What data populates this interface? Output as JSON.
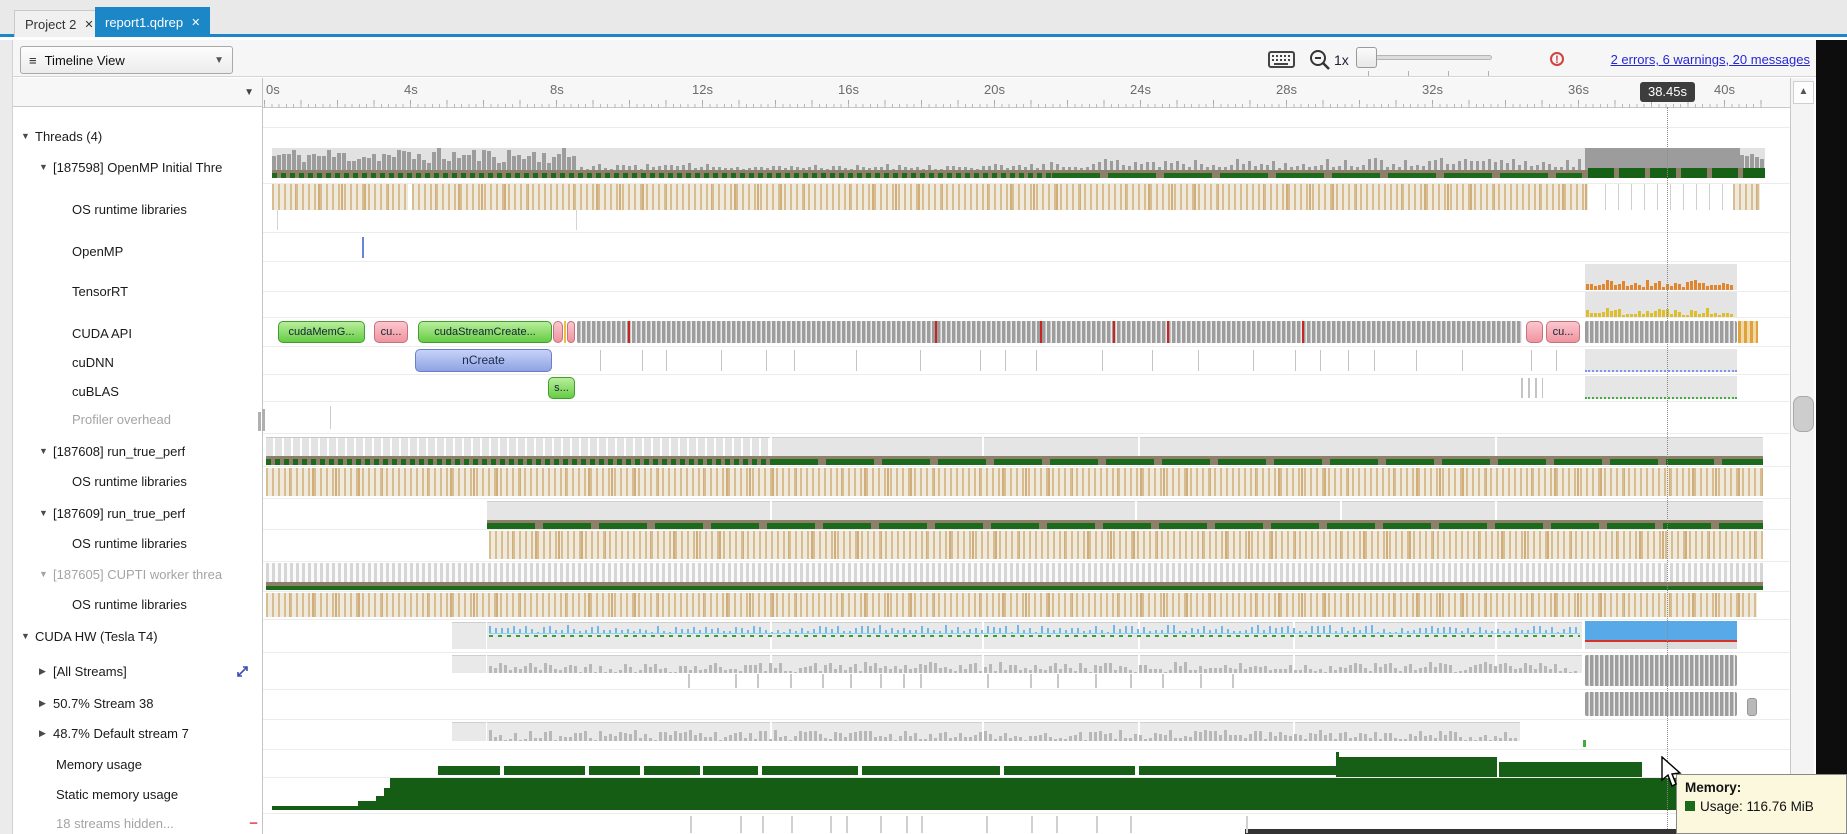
{
  "tabs": [
    {
      "label": "Project 2"
    },
    {
      "label": "report1.qdrep",
      "active": true
    }
  ],
  "toolbar": {
    "view_selector": "Timeline View",
    "zoom_level": "1x",
    "status_link": "2 errors, 6 warnings, 20 messages"
  },
  "ruler": {
    "ticks": [
      "0s",
      "4s",
      "8s",
      "12s",
      "16s",
      "20s",
      "24s",
      "28s",
      "32s",
      "36s",
      "40s"
    ],
    "cursor_label": "38.45s"
  },
  "sidebar": {
    "rows": [
      {
        "label": "Threads (4)"
      },
      {
        "label": "[187598] OpenMP Initial Thre"
      },
      {
        "label": "OS runtime libraries"
      },
      {
        "label": "OpenMP"
      },
      {
        "label": "TensorRT"
      },
      {
        "label": "CUDA API"
      },
      {
        "label": "cuDNN"
      },
      {
        "label": "cuBLAS"
      },
      {
        "label": "Profiler overhead"
      },
      {
        "label": "[187608] run_true_perf"
      },
      {
        "label": "OS runtime libraries"
      },
      {
        "label": "[187609] run_true_perf"
      },
      {
        "label": "OS runtime libraries"
      },
      {
        "label": "[187605] CUPTI worker threa"
      },
      {
        "label": "OS runtime libraries"
      },
      {
        "label": "CUDA HW (Tesla T4)"
      },
      {
        "label": "[All Streams]"
      },
      {
        "label": "50.7% Stream 38"
      },
      {
        "label": "48.7% Default stream 7"
      },
      {
        "label": "Memory usage"
      },
      {
        "label": "Static memory usage"
      },
      {
        "label": "18 streams hidden..."
      }
    ],
    "hidden_row_minus": "−",
    "hidden_row_plus": "+"
  },
  "timeline": {
    "cuda_api_boxes": [
      {
        "label": "cudaMemG..."
      },
      {
        "label": "cu..."
      },
      {
        "label": "cudaStreamCreate..."
      },
      {
        "label": "cu..."
      }
    ],
    "cudnn_box": "nCreate",
    "cublas_box": "s...",
    "api_error_marks": [
      628,
      935,
      1040,
      1113,
      1167,
      1302
    ],
    "allstream_subticks": [
      688,
      735,
      757,
      790,
      822,
      850,
      880,
      903,
      920,
      987,
      1030,
      1057,
      1095,
      1130,
      1162,
      1200,
      1232
    ],
    "bottom_ticks": [
      690,
      740,
      762,
      791,
      830,
      846,
      880,
      906,
      921,
      986,
      1031,
      1056,
      1096,
      1130,
      1246
    ],
    "memory_base_segments": [
      [
        438,
        500
      ],
      [
        504,
        585
      ],
      [
        589,
        640
      ],
      [
        644,
        700
      ],
      [
        703,
        758
      ],
      [
        762,
        858
      ],
      [
        862,
        1000
      ],
      [
        1004,
        1135
      ],
      [
        1139,
        1336
      ]
    ],
    "memory_tall_segment": [
      1338,
      1497
    ],
    "memory_mid_segment": [
      1499,
      1642
    ],
    "static_steps": [
      [
        272,
        358,
        806
      ],
      [
        358,
        376,
        801
      ],
      [
        376,
        384,
        796
      ],
      [
        384,
        390,
        788
      ],
      [
        390,
        1763,
        778
      ]
    ]
  },
  "tooltip": {
    "title": "Memory:",
    "usage": "Usage: 116.76 MiB"
  },
  "colors": {
    "accent_blue": "#1b87c7",
    "memory_green": "#175e17",
    "api_green": "#66cc44",
    "api_pink": "#f0949f",
    "cudnn_blue": "#8fa3e3",
    "hw_blue": "#58a9e8",
    "error_red": "#d43f3f",
    "link_blue": "#2626d9"
  }
}
